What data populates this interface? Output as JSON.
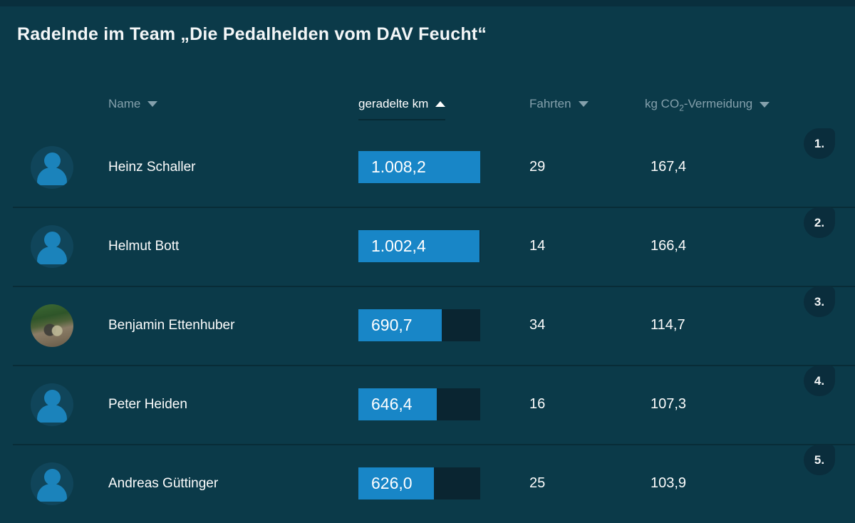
{
  "title": "Radelnde im Team „Die Pedalhelden vom DAV Feucht“",
  "table": {
    "headers": {
      "name": {
        "label": "Name",
        "sort_icon": "desc"
      },
      "km": {
        "label": "geradelte km",
        "sort_icon": "asc",
        "active": true
      },
      "fahrten": {
        "label": "Fahrten",
        "sort_icon": "desc"
      },
      "co2": {
        "pre": "kg CO",
        "sub": "2",
        "post": "-Vermeidung",
        "sort_icon": "desc"
      }
    },
    "max_km": 1008.2,
    "rows": [
      {
        "rank": "1.",
        "name": "Heinz Schaller",
        "km_display": "1.008,2",
        "km": 1008.2,
        "fahrten": "29",
        "co2": "167,4",
        "avatar": "person-icon"
      },
      {
        "rank": "2.",
        "name": "Helmut Bott",
        "km_display": "1.002,4",
        "km": 1002.4,
        "fahrten": "14",
        "co2": "166,4",
        "avatar": "person-icon"
      },
      {
        "rank": "3.",
        "name": "Benjamin Ettenhuber",
        "km_display": "690,7",
        "km": 690.7,
        "fahrten": "34",
        "co2": "114,7",
        "avatar": "photo"
      },
      {
        "rank": "4.",
        "name": "Peter Heiden",
        "km_display": "646,4",
        "km": 646.4,
        "fahrten": "16",
        "co2": "107,3",
        "avatar": "person-icon"
      },
      {
        "rank": "5.",
        "name": "Andreas Güttinger",
        "km_display": "626,0",
        "km": 626.0,
        "fahrten": "25",
        "co2": "103,9",
        "avatar": "person-icon"
      }
    ]
  },
  "colors": {
    "background": "#0b3a49",
    "bar_fill": "#1886c7",
    "bar_track": "#0a2531",
    "badge_background": "#0a2d3c",
    "header_inactive": "#84a0ac",
    "header_active": "#ffffff",
    "avatar_icon": "#1b83bb"
  }
}
